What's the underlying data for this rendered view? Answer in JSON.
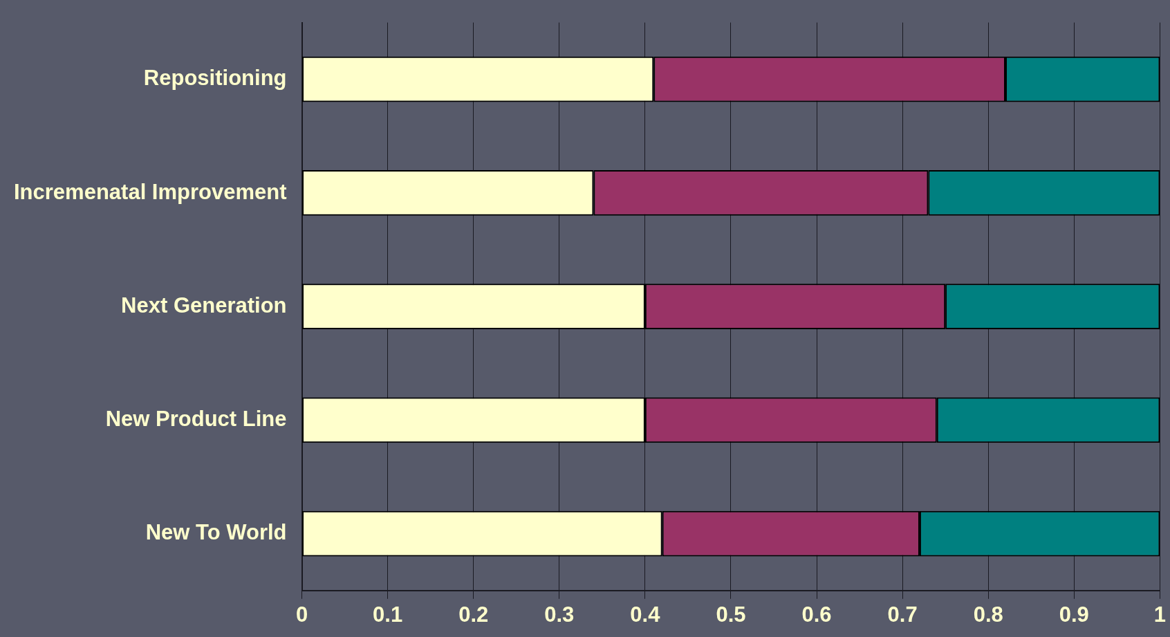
{
  "chart_data": {
    "type": "bar",
    "orientation": "horizontal",
    "stacked": true,
    "categories": [
      "Repositioning",
      "Incremenatal Improvement",
      "Next Generation",
      "New Product Line",
      "New To World"
    ],
    "series": [
      {
        "color": "#ffffcc",
        "values": [
          0.41,
          0.34,
          0.4,
          0.4,
          0.42
        ]
      },
      {
        "color": "#993366",
        "values": [
          0.41,
          0.39,
          0.35,
          0.34,
          0.3
        ]
      },
      {
        "color": "#008080",
        "values": [
          0.18,
          0.27,
          0.25,
          0.26,
          0.28
        ]
      }
    ],
    "xlim": [
      0,
      1
    ],
    "xticks": [
      0,
      0.1,
      0.2,
      0.3,
      0.4,
      0.5,
      0.6,
      0.7,
      0.8,
      0.9,
      1
    ],
    "grid": "x",
    "legend": false
  }
}
